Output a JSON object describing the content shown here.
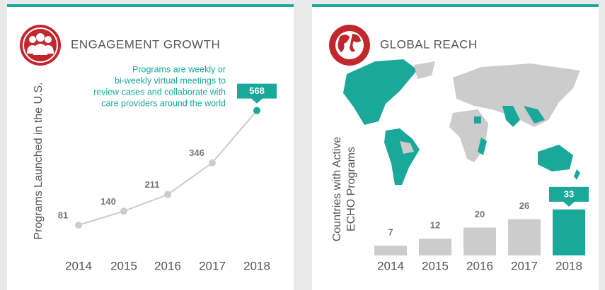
{
  "chart_data": [
    {
      "type": "line",
      "title": "ENGAGEMENT GROWTH",
      "ylabel": [
        "Programs Launched in the U.S."
      ],
      "annotation": [
        "Programs are weekly or",
        "bi-weekly virtual meetings to",
        "review cases and collaborate with",
        "care providers around the world"
      ],
      "categories": [
        "2014",
        "2015",
        "2016",
        "2017",
        "2018"
      ],
      "values": [
        81,
        140,
        211,
        346,
        568
      ],
      "color": "#cccccc",
      "highlight_color": "#1aa89b",
      "ylim": [
        0,
        600
      ]
    },
    {
      "type": "bar",
      "title": "GLOBAL REACH",
      "ylabel": [
        "Countries with Active",
        "ECHO Programs"
      ],
      "categories": [
        "2014",
        "2015",
        "2016",
        "2017",
        "2018"
      ],
      "values": [
        7,
        12,
        20,
        26,
        33
      ],
      "color": "#cccccc",
      "highlight_color": "#1aa89b",
      "ylim": [
        0,
        40
      ]
    }
  ]
}
